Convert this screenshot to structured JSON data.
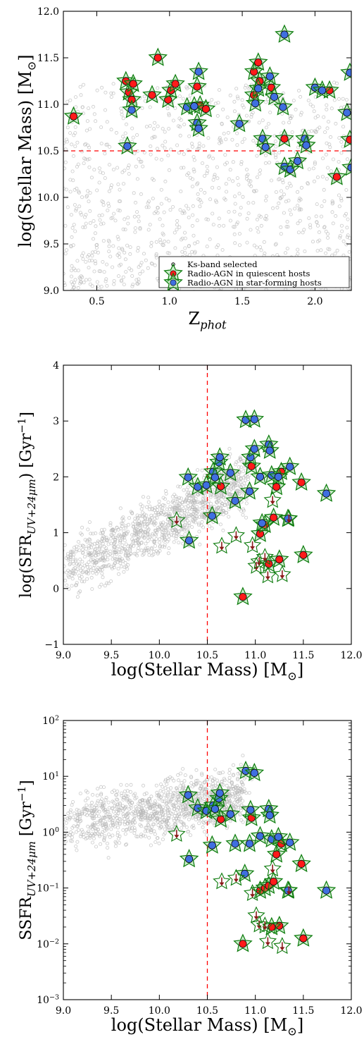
{
  "colors": {
    "background_points": "#b8b8b8",
    "star_fill": "#66cc66",
    "star_edge": "#0b7a0b",
    "quiescent": "#ff1a1a",
    "star_forming": "#3f6fe0",
    "cut_line": "#ff0000",
    "upper_limit_arrow": "#8b1a1a"
  },
  "chart_data": [
    {
      "type": "scatter",
      "panel": "top",
      "xlabel": "Z",
      "xlabel_sub": "phot",
      "ylabel": "log(Stellar Mass) [M",
      "ylabel_unit_symbol": "⊙",
      "ylabel_end": "]",
      "xlim": [
        0.27,
        2.25
      ],
      "ylim": [
        9.0,
        12.0
      ],
      "xticks": [
        0.5,
        1.0,
        1.5,
        2.0
      ],
      "xtick_labels": [
        "0.5",
        "1.0",
        "1.5",
        "2.0"
      ],
      "yticks": [
        9.0,
        9.5,
        10.0,
        10.5,
        11.0,
        11.5,
        12.0
      ],
      "ytick_labels": [
        "9.0",
        "9.5",
        "10.0",
        "10.5",
        "11.0",
        "11.5",
        "12.0"
      ],
      "cut_line": {
        "orientation": "horizontal",
        "value": 10.5
      },
      "legend": {
        "placement": "lower right",
        "entries": [
          "Ks-band selected",
          "Radio-AGN in quiescent hosts",
          "Radio-AGN in star-forming hosts"
        ]
      },
      "series": [
        {
          "name": "Radio-AGN in quiescent hosts",
          "points": [
            [
              0.34,
              10.87
            ],
            [
              0.7,
              11.25
            ],
            [
              0.72,
              11.13
            ],
            [
              0.74,
              11.05
            ],
            [
              0.75,
              11.22
            ],
            [
              0.88,
              11.1
            ],
            [
              0.92,
              11.5
            ],
            [
              0.99,
              11.05
            ],
            [
              1.01,
              11.15
            ],
            [
              1.04,
              11.22
            ],
            [
              1.19,
              11.19
            ],
            [
              1.21,
              10.99
            ],
            [
              1.25,
              10.95
            ],
            [
              1.58,
              11.35
            ],
            [
              1.58,
              11.1
            ],
            [
              1.61,
              11.45
            ],
            [
              1.62,
              11.25
            ],
            [
              1.7,
              11.18
            ],
            [
              1.79,
              10.63
            ],
            [
              2.1,
              11.15
            ],
            [
              2.15,
              10.22
            ],
            [
              2.24,
              10.62
            ]
          ]
        },
        {
          "name": "Radio-AGN in star-forming hosts",
          "points": [
            [
              0.71,
              10.55
            ],
            [
              0.74,
              10.94
            ],
            [
              1.12,
              10.97
            ],
            [
              1.17,
              10.98
            ],
            [
              1.19,
              10.8
            ],
            [
              1.2,
              10.74
            ],
            [
              1.2,
              11.35
            ],
            [
              1.48,
              10.79
            ],
            [
              1.59,
              11.01
            ],
            [
              1.61,
              11.17
            ],
            [
              1.64,
              10.63
            ],
            [
              1.66,
              10.54
            ],
            [
              1.69,
              11.3
            ],
            [
              1.72,
              11.08
            ],
            [
              1.79,
              11.75
            ],
            [
              1.78,
              10.97
            ],
            [
              1.79,
              10.33
            ],
            [
              1.83,
              10.3
            ],
            [
              1.88,
              10.39
            ],
            [
              1.93,
              10.63
            ],
            [
              1.94,
              10.56
            ],
            [
              2.0,
              11.18
            ],
            [
              2.05,
              11.15
            ],
            [
              2.22,
              10.91
            ],
            [
              2.24,
              11.34
            ],
            [
              2.25,
              10.32
            ]
          ]
        }
      ]
    },
    {
      "type": "scatter",
      "panel": "middle",
      "xlabel": "log(Stellar Mass) [M",
      "xlabel_unit_symbol": "⊙",
      "xlabel_end": "]",
      "ylabel": "log(SFR",
      "ylabel_sub": "UV+24μm",
      "ylabel_end": ") [Gyr",
      "ylabel_sup": "−1",
      "ylabel_close": "]",
      "xlim": [
        9.0,
        12.0
      ],
      "ylim": [
        -1,
        4
      ],
      "xticks": [
        9.0,
        9.5,
        10.0,
        10.5,
        11.0,
        11.5,
        12.0
      ],
      "xtick_labels": [
        "9.0",
        "9.5",
        "10.0",
        "10.5",
        "11.0",
        "11.5",
        "12.0"
      ],
      "yticks": [
        -1,
        0,
        1,
        2,
        3,
        4
      ],
      "ytick_labels": [
        "−1",
        "0",
        "1",
        "2",
        "3",
        "4"
      ],
      "cut_line": {
        "orientation": "vertical",
        "value": 10.5
      },
      "series": [
        {
          "name": "Radio-AGN in quiescent hosts",
          "points": [
            [
              10.64,
              1.83
            ],
            [
              10.87,
              -0.15
            ],
            [
              10.96,
              2.19
            ],
            [
              11.05,
              0.98
            ],
            [
              11.1,
              1.14
            ],
            [
              11.14,
              0.44
            ],
            [
              11.19,
              1.27
            ],
            [
              11.22,
              1.82
            ],
            [
              11.25,
              0.52
            ],
            [
              11.27,
              2.09
            ],
            [
              11.48,
              1.9
            ],
            [
              11.5,
              0.6
            ]
          ]
        },
        {
          "name": "Radio-AGN in star-forming hosts",
          "points": [
            [
              10.3,
              1.99
            ],
            [
              10.31,
              0.86
            ],
            [
              10.4,
              1.82
            ],
            [
              10.49,
              1.85
            ],
            [
              10.55,
              1.3
            ],
            [
              10.56,
              2.09
            ],
            [
              10.58,
              1.99
            ],
            [
              10.62,
              2.26
            ],
            [
              10.63,
              2.35
            ],
            [
              10.74,
              2.07
            ],
            [
              10.79,
              1.57
            ],
            [
              10.9,
              3.02
            ],
            [
              10.94,
              1.74
            ],
            [
              10.95,
              2.35
            ],
            [
              10.99,
              3.03
            ],
            [
              10.99,
              2.5
            ],
            [
              11.05,
              2.0
            ],
            [
              11.07,
              1.17
            ],
            [
              11.14,
              2.58
            ],
            [
              11.15,
              2.47
            ],
            [
              11.17,
              2.03
            ],
            [
              11.24,
              2.0
            ],
            [
              11.34,
              1.25
            ],
            [
              11.36,
              2.18
            ],
            [
              11.74,
              1.7
            ]
          ]
        },
        {
          "name": "upper limits",
          "points": [
            [
              10.18,
              1.22
            ],
            [
              10.65,
              0.76
            ],
            [
              10.8,
              0.95
            ],
            [
              10.97,
              0.77
            ],
            [
              11.01,
              0.4
            ],
            [
              11.04,
              0.48
            ],
            [
              11.1,
              0.56
            ],
            [
              11.13,
              0.23
            ],
            [
              11.18,
              1.58
            ],
            [
              11.28,
              0.25
            ],
            [
              11.35,
              1.25
            ]
          ]
        }
      ]
    },
    {
      "type": "scatter",
      "panel": "bottom",
      "xlabel": "log(Stellar Mass) [M",
      "xlabel_unit_symbol": "⊙",
      "xlabel_end": "]",
      "ylabel": "SSFR",
      "ylabel_sub": "UV+24μm",
      "ylabel_end": " [Gyr",
      "ylabel_sup": "−1",
      "ylabel_close": "]",
      "y_scale": "log",
      "xlim": [
        9.0,
        12.0
      ],
      "ylim": [
        0.001,
        100
      ],
      "xticks": [
        9.0,
        9.5,
        10.0,
        10.5,
        11.0,
        11.5,
        12.0
      ],
      "xtick_labels": [
        "9.0",
        "9.5",
        "10.0",
        "10.5",
        "11.0",
        "11.5",
        "12.0"
      ],
      "yticks": [
        0.001,
        0.01,
        0.1,
        1,
        10,
        100
      ],
      "ytick_base": "10",
      "ytick_exponents": [
        "−3",
        "−2",
        "−1",
        "0",
        "1",
        "2"
      ],
      "cut_line": {
        "orientation": "vertical",
        "value": 10.5
      },
      "series": [
        {
          "name": "Radio-AGN in quiescent hosts",
          "points": [
            [
              10.64,
              1.7
            ],
            [
              10.87,
              0.01
            ],
            [
              10.96,
              1.8
            ],
            [
              11.05,
              0.09
            ],
            [
              11.1,
              0.1
            ],
            [
              11.14,
              0.11
            ],
            [
              11.19,
              0.13
            ],
            [
              11.22,
              0.4
            ],
            [
              11.25,
              0.021
            ],
            [
              11.17,
              0.02
            ],
            [
              11.27,
              0.62
            ],
            [
              11.48,
              0.27
            ],
            [
              11.5,
              0.0125
            ]
          ]
        },
        {
          "name": "Radio-AGN in star-forming hosts",
          "points": [
            [
              10.3,
              4.6
            ],
            [
              10.31,
              0.33
            ],
            [
              10.4,
              2.7
            ],
            [
              10.49,
              2.4
            ],
            [
              10.55,
              0.58
            ],
            [
              10.56,
              3.0
            ],
            [
              10.58,
              2.6
            ],
            [
              10.62,
              4.0
            ],
            [
              10.63,
              5.0
            ],
            [
              10.74,
              2.1
            ],
            [
              10.79,
              0.62
            ],
            [
              10.9,
              12.5
            ],
            [
              10.94,
              0.62
            ],
            [
              10.95,
              2.5
            ],
            [
              10.99,
              11.5
            ],
            [
              10.89,
              0.18
            ],
            [
              11.05,
              0.85
            ],
            [
              11.14,
              2.6
            ],
            [
              11.15,
              2.0
            ],
            [
              11.17,
              0.75
            ],
            [
              11.24,
              0.82
            ],
            [
              11.34,
              0.09
            ],
            [
              11.36,
              0.65
            ],
            [
              11.74,
              0.09
            ]
          ]
        },
        {
          "name": "upper limits",
          "points": [
            [
              10.18,
              0.92
            ],
            [
              10.65,
              0.13
            ],
            [
              10.8,
              0.15
            ],
            [
              10.97,
              0.08
            ],
            [
              11.01,
              0.032
            ],
            [
              11.04,
              0.022
            ],
            [
              11.1,
              0.021
            ],
            [
              11.13,
              0.011
            ],
            [
              11.18,
              0.22
            ],
            [
              11.28,
              0.009
            ],
            [
              11.35,
              0.09
            ]
          ]
        }
      ]
    }
  ]
}
